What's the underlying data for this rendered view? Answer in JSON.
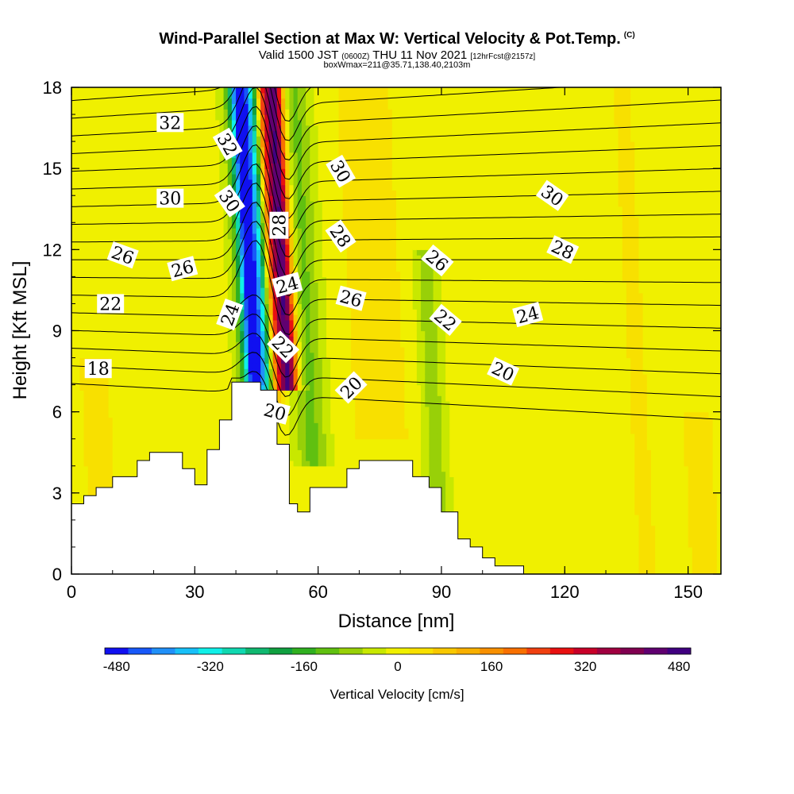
{
  "header": {
    "title": "Wind-Parallel Section at Max W: Vertical Velocity & Pot.Temp.",
    "title_mark": "(C)",
    "valid_prefix": "Valid 1500 JST",
    "valid_zulu": "(0600Z)",
    "valid_date": "THU 11 Nov 2021",
    "forecast_info": "[12hrFcst@2157z]",
    "box_info": "boxWmax=211@35.71,138.40,2103m"
  },
  "colorbar": {
    "label": "Vertical Velocity [cm/s]",
    "levels": [
      -500,
      -460,
      -420,
      -380,
      -340,
      -300,
      -260,
      -220,
      -180,
      -140,
      -100,
      -60,
      -20,
      20,
      60,
      100,
      140,
      180,
      220,
      260,
      300,
      340,
      380,
      420,
      460,
      500
    ],
    "colors": [
      "#1010f0",
      "#1858f8",
      "#2090f8",
      "#18c0f8",
      "#10f0e8",
      "#10d8b0",
      "#10b870",
      "#10a040",
      "#30b020",
      "#60c010",
      "#98d008",
      "#c8e800",
      "#f0f000",
      "#f8e000",
      "#f8c800",
      "#f8b000",
      "#f89000",
      "#f87000",
      "#f04010",
      "#e81010",
      "#c80028",
      "#a00040",
      "#800050",
      "#600070",
      "#400080"
    ],
    "tick_labels": [
      "-480",
      "-320",
      "-160",
      "0",
      "160",
      "320",
      "480"
    ],
    "tick_values": [
      -480,
      -320,
      -160,
      0,
      160,
      320,
      480
    ]
  },
  "chart_data": {
    "type": "heatmap",
    "title": "Wind-Parallel Section at Max W: Vertical Velocity & Pot.Temp.",
    "xlabel": "Distance [nm]",
    "ylabel": "Height [Kft MSL]",
    "xlim": [
      0,
      158
    ],
    "ylim": [
      0,
      18
    ],
    "x_ticks": [
      0,
      30,
      60,
      90,
      120,
      150
    ],
    "x_tick_labels": [
      "0",
      "30",
      "60",
      "90",
      "120",
      "150"
    ],
    "y_ticks": [
      0,
      3,
      6,
      9,
      12,
      15,
      18
    ],
    "y_tick_labels": [
      "0",
      "3",
      "6",
      "9",
      "12",
      "15",
      "18"
    ],
    "fill_variable": "Vertical Velocity [cm/s]",
    "contour_variable": "Potential temperature",
    "contour_levels": [
      17,
      18,
      19,
      20,
      21,
      22,
      23,
      24,
      25,
      26,
      27,
      28,
      29,
      30,
      31,
      32,
      33
    ],
    "background_w": 0,
    "w_features": [
      {
        "center_x": 43,
        "width_x": 2.2,
        "y_range": [
          6.5,
          18
        ],
        "w": -430
      },
      {
        "center_x": 46,
        "width_x": 1.8,
        "y_range": [
          6,
          18
        ],
        "w": -200
      },
      {
        "center_x": 51,
        "width_x": 2.4,
        "y_range": [
          6.8,
          18
        ],
        "w": 480
      },
      {
        "center_x": 48,
        "width_x": 1.6,
        "y_range": [
          6,
          18
        ],
        "w": 140
      },
      {
        "center_x": 56,
        "width_x": 4,
        "y_range": [
          4,
          18
        ],
        "w": -110
      },
      {
        "center_x": 42,
        "width_x": 3.5,
        "y_range": [
          7,
          18
        ],
        "w": -130
      },
      {
        "center_x": 73,
        "width_x": 6,
        "y_range": [
          5,
          18
        ],
        "w": 60
      },
      {
        "center_x": 86,
        "width_x": 3,
        "y_range": [
          2,
          12
        ],
        "w": -80
      },
      {
        "center_x": 4,
        "width_x": 4,
        "y_range": [
          0,
          8
        ],
        "w": 40
      },
      {
        "center_x": 136,
        "width_x": 3,
        "y_range": [
          0,
          18
        ],
        "w": 30
      },
      {
        "center_x": 150,
        "width_x": 4,
        "y_range": [
          0,
          6
        ],
        "w": 40
      }
    ],
    "terrain_height": [
      [
        0,
        2.6
      ],
      [
        3,
        2.9
      ],
      [
        6,
        3.2
      ],
      [
        10,
        3.6
      ],
      [
        16,
        4.2
      ],
      [
        19,
        4.5
      ],
      [
        25,
        4.5
      ],
      [
        27,
        3.9
      ],
      [
        30,
        3.3
      ],
      [
        33,
        4.6
      ],
      [
        36,
        5.7
      ],
      [
        39,
        7.1
      ],
      [
        44,
        7.1
      ],
      [
        46,
        6.8
      ],
      [
        50,
        4.8
      ],
      [
        53,
        2.6
      ],
      [
        55,
        2.3
      ],
      [
        58,
        3.2
      ],
      [
        65,
        3.2
      ],
      [
        67,
        3.9
      ],
      [
        70,
        4.2
      ],
      [
        78,
        4.2
      ],
      [
        83,
        3.6
      ],
      [
        87,
        3.2
      ],
      [
        90,
        2.3
      ],
      [
        94,
        1.3
      ],
      [
        97,
        1.0
      ],
      [
        100,
        0.6
      ],
      [
        103,
        0.3
      ],
      [
        110,
        0.3
      ]
    ],
    "contour_labels": [
      {
        "text": "32",
        "x": 24,
        "y": 16.7,
        "angle": 0
      },
      {
        "text": "32",
        "x": 38,
        "y": 15.9,
        "angle": 60
      },
      {
        "text": "30",
        "x": 24,
        "y": 13.9,
        "angle": 0
      },
      {
        "text": "30",
        "x": 38.5,
        "y": 13.8,
        "angle": 55
      },
      {
        "text": "28",
        "x": 50.5,
        "y": 12.9,
        "angle": -90
      },
      {
        "text": "30",
        "x": 65.5,
        "y": 14.9,
        "angle": 60
      },
      {
        "text": "28",
        "x": 65.5,
        "y": 12.5,
        "angle": 55
      },
      {
        "text": "26",
        "x": 12.5,
        "y": 11.8,
        "angle": 20
      },
      {
        "text": "26",
        "x": 27,
        "y": 11.3,
        "angle": -15
      },
      {
        "text": "24",
        "x": 38.5,
        "y": 9.6,
        "angle": -70
      },
      {
        "text": "24",
        "x": 52.5,
        "y": 10.7,
        "angle": -15
      },
      {
        "text": "26",
        "x": 68,
        "y": 10.2,
        "angle": 15
      },
      {
        "text": "26",
        "x": 89,
        "y": 11.6,
        "angle": 40
      },
      {
        "text": "30",
        "x": 117,
        "y": 14.0,
        "angle": 35
      },
      {
        "text": "28",
        "x": 119.5,
        "y": 12.0,
        "angle": 25
      },
      {
        "text": "22",
        "x": 9.5,
        "y": 10.0,
        "angle": 0
      },
      {
        "text": "22",
        "x": 51.5,
        "y": 8.4,
        "angle": 45
      },
      {
        "text": "22",
        "x": 91,
        "y": 9.4,
        "angle": 40
      },
      {
        "text": "24",
        "x": 111,
        "y": 9.6,
        "angle": -15
      },
      {
        "text": "18",
        "x": 6.5,
        "y": 7.6,
        "angle": 0
      },
      {
        "text": "20",
        "x": 68,
        "y": 6.9,
        "angle": -45
      },
      {
        "text": "20",
        "x": 105,
        "y": 7.5,
        "angle": 25
      },
      {
        "text": "20",
        "x": 49.5,
        "y": 6.0,
        "angle": 15
      }
    ]
  }
}
